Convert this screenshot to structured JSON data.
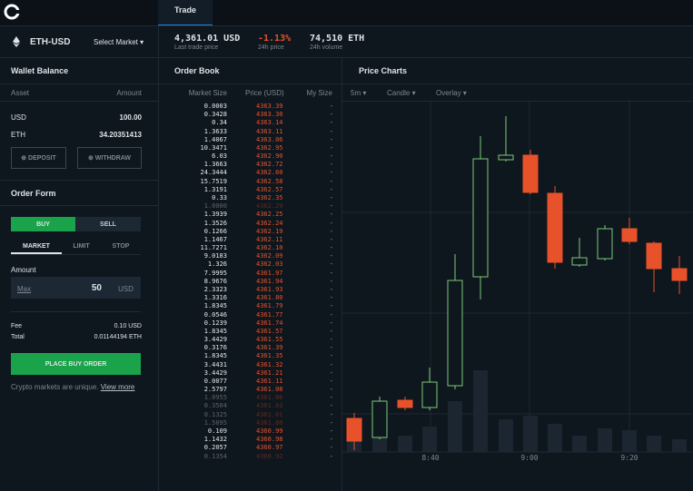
{
  "header": {
    "tab": "Trade",
    "market": "ETH-USD",
    "select_market": "Select Market",
    "stats": [
      {
        "value": "4,361.01 USD",
        "label": "Last trade price",
        "tone": "plain"
      },
      {
        "value": "-1.13%",
        "label": "24h price",
        "tone": "down"
      },
      {
        "value": "74,510 ETH",
        "label": "24h volume",
        "tone": "plain"
      }
    ]
  },
  "wallet": {
    "title": "Wallet Balance",
    "columns": [
      "Asset",
      "Amount"
    ],
    "rows": [
      [
        "USD",
        "100.00"
      ],
      [
        "ETH",
        "34.20351413"
      ]
    ],
    "deposit": "DEPOSIT",
    "withdraw": "WITHDRAW"
  },
  "order_form": {
    "title": "Order Form",
    "sides": [
      "BUY",
      "SELL"
    ],
    "types": [
      "MARKET",
      "LIMIT",
      "STOP"
    ],
    "amount_label": "Amount",
    "max": "Max",
    "amount": "50",
    "unit": "USD",
    "fee_label": "Fee",
    "fee": "0.10 USD",
    "total_label": "Total",
    "total": "0.01144194 ETH",
    "submit": "PLACE BUY ORDER",
    "note": "Crypto markets are unique.",
    "note_link": "View more"
  },
  "order_book": {
    "title": "Order Book",
    "columns": [
      "Market Size",
      "Price (USD)",
      "My Size"
    ],
    "empty_mark": "-",
    "rows": [
      {
        "size": "0.0003",
        "price": "4363.39"
      },
      {
        "size": "0.3428",
        "price": "4363.30"
      },
      {
        "size": "0.34",
        "price": "4363.14"
      },
      {
        "size": "1.3633",
        "price": "4363.11"
      },
      {
        "size": "1.4067",
        "price": "4363.06"
      },
      {
        "size": "10.3471",
        "price": "4362.95"
      },
      {
        "size": "6.03",
        "price": "4362.90"
      },
      {
        "size": "1.3663",
        "price": "4362.72"
      },
      {
        "size": "24.3444",
        "price": "4362.60"
      },
      {
        "size": "15.7519",
        "price": "4362.58"
      },
      {
        "size": "1.3191",
        "price": "4362.57"
      },
      {
        "size": "0.33",
        "price": "4362.35"
      },
      {
        "size": "1.0000",
        "price": "4362.29",
        "dim": true
      },
      {
        "size": "1.3939",
        "price": "4362.25"
      },
      {
        "size": "1.3526",
        "price": "4362.24"
      },
      {
        "size": "0.1266",
        "price": "4362.19"
      },
      {
        "size": "1.1467",
        "price": "4362.11"
      },
      {
        "size": "11.7271",
        "price": "4362.10"
      },
      {
        "size": "9.0183",
        "price": "4362.09"
      },
      {
        "size": "1.326",
        "price": "4362.03"
      },
      {
        "size": "7.9995",
        "price": "4361.97"
      },
      {
        "size": "8.9676",
        "price": "4361.94"
      },
      {
        "size": "2.3323",
        "price": "4361.93"
      },
      {
        "size": "1.3316",
        "price": "4361.80"
      },
      {
        "size": "1.8345",
        "price": "4361.79"
      },
      {
        "size": "0.0546",
        "price": "4361.77"
      },
      {
        "size": "0.1239",
        "price": "4361.74"
      },
      {
        "size": "1.8345",
        "price": "4361.57"
      },
      {
        "size": "3.4429",
        "price": "4361.55"
      },
      {
        "size": "0.3176",
        "price": "4361.39"
      },
      {
        "size": "1.8345",
        "price": "4361.35"
      },
      {
        "size": "3.4431",
        "price": "4361.32"
      },
      {
        "size": "3.4429",
        "price": "4361.21"
      },
      {
        "size": "0.0077",
        "price": "4361.11"
      },
      {
        "size": "2.5797",
        "price": "4361.08"
      },
      {
        "size": "1.0955",
        "price": "4361.06",
        "dim": true
      },
      {
        "size": "0.3504",
        "price": "4361.03",
        "dim": true
      },
      {
        "size": "0.1325",
        "price": "4361.01",
        "dim": true
      },
      {
        "size": "1.5095",
        "price": "4361.00",
        "dim": true
      },
      {
        "size": "0.109",
        "price": "4360.99"
      },
      {
        "size": "1.1432",
        "price": "4360.98"
      },
      {
        "size": "0.2057",
        "price": "4360.97"
      },
      {
        "size": "0.1354",
        "price": "4360.92",
        "dim": true
      }
    ]
  },
  "chart": {
    "title": "Price Charts",
    "controls": [
      "5m",
      "Candle",
      "Overlay"
    ],
    "time_labels": [
      "8:40",
      "9:00",
      "9:20"
    ]
  }
}
